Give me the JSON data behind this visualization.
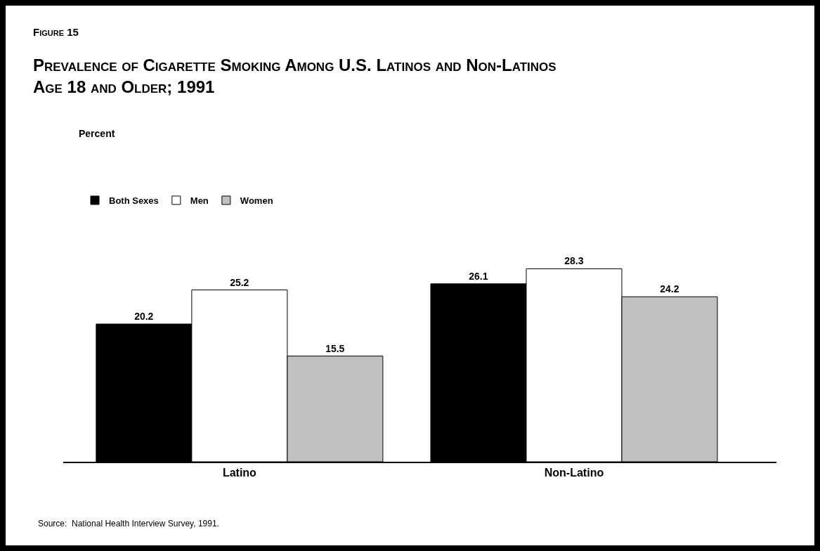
{
  "chart_data": {
    "type": "bar",
    "title": "Prevalence of Cigarette Smoking Among U.S. Latinos and Non-Latinos Age 18 and Older; 1991",
    "annotations": [
      "Figure 15",
      "Source:  National Health Interview Survey, 1991.",
      "Percent"
    ],
    "categories": [
      "Latino",
      "Non-Latino"
    ],
    "series": [
      {
        "name": "Both Sexes",
        "color": "#000000",
        "values": [
          20.2,
          26.1
        ]
      },
      {
        "name": "Men",
        "color": "#ffffff",
        "values": [
          25.2,
          28.3
        ]
      },
      {
        "name": "Women",
        "color": "#c0c0c0",
        "values": [
          15.5,
          24.2
        ]
      }
    ],
    "data_labels": true,
    "legend": "top left"
  }
}
